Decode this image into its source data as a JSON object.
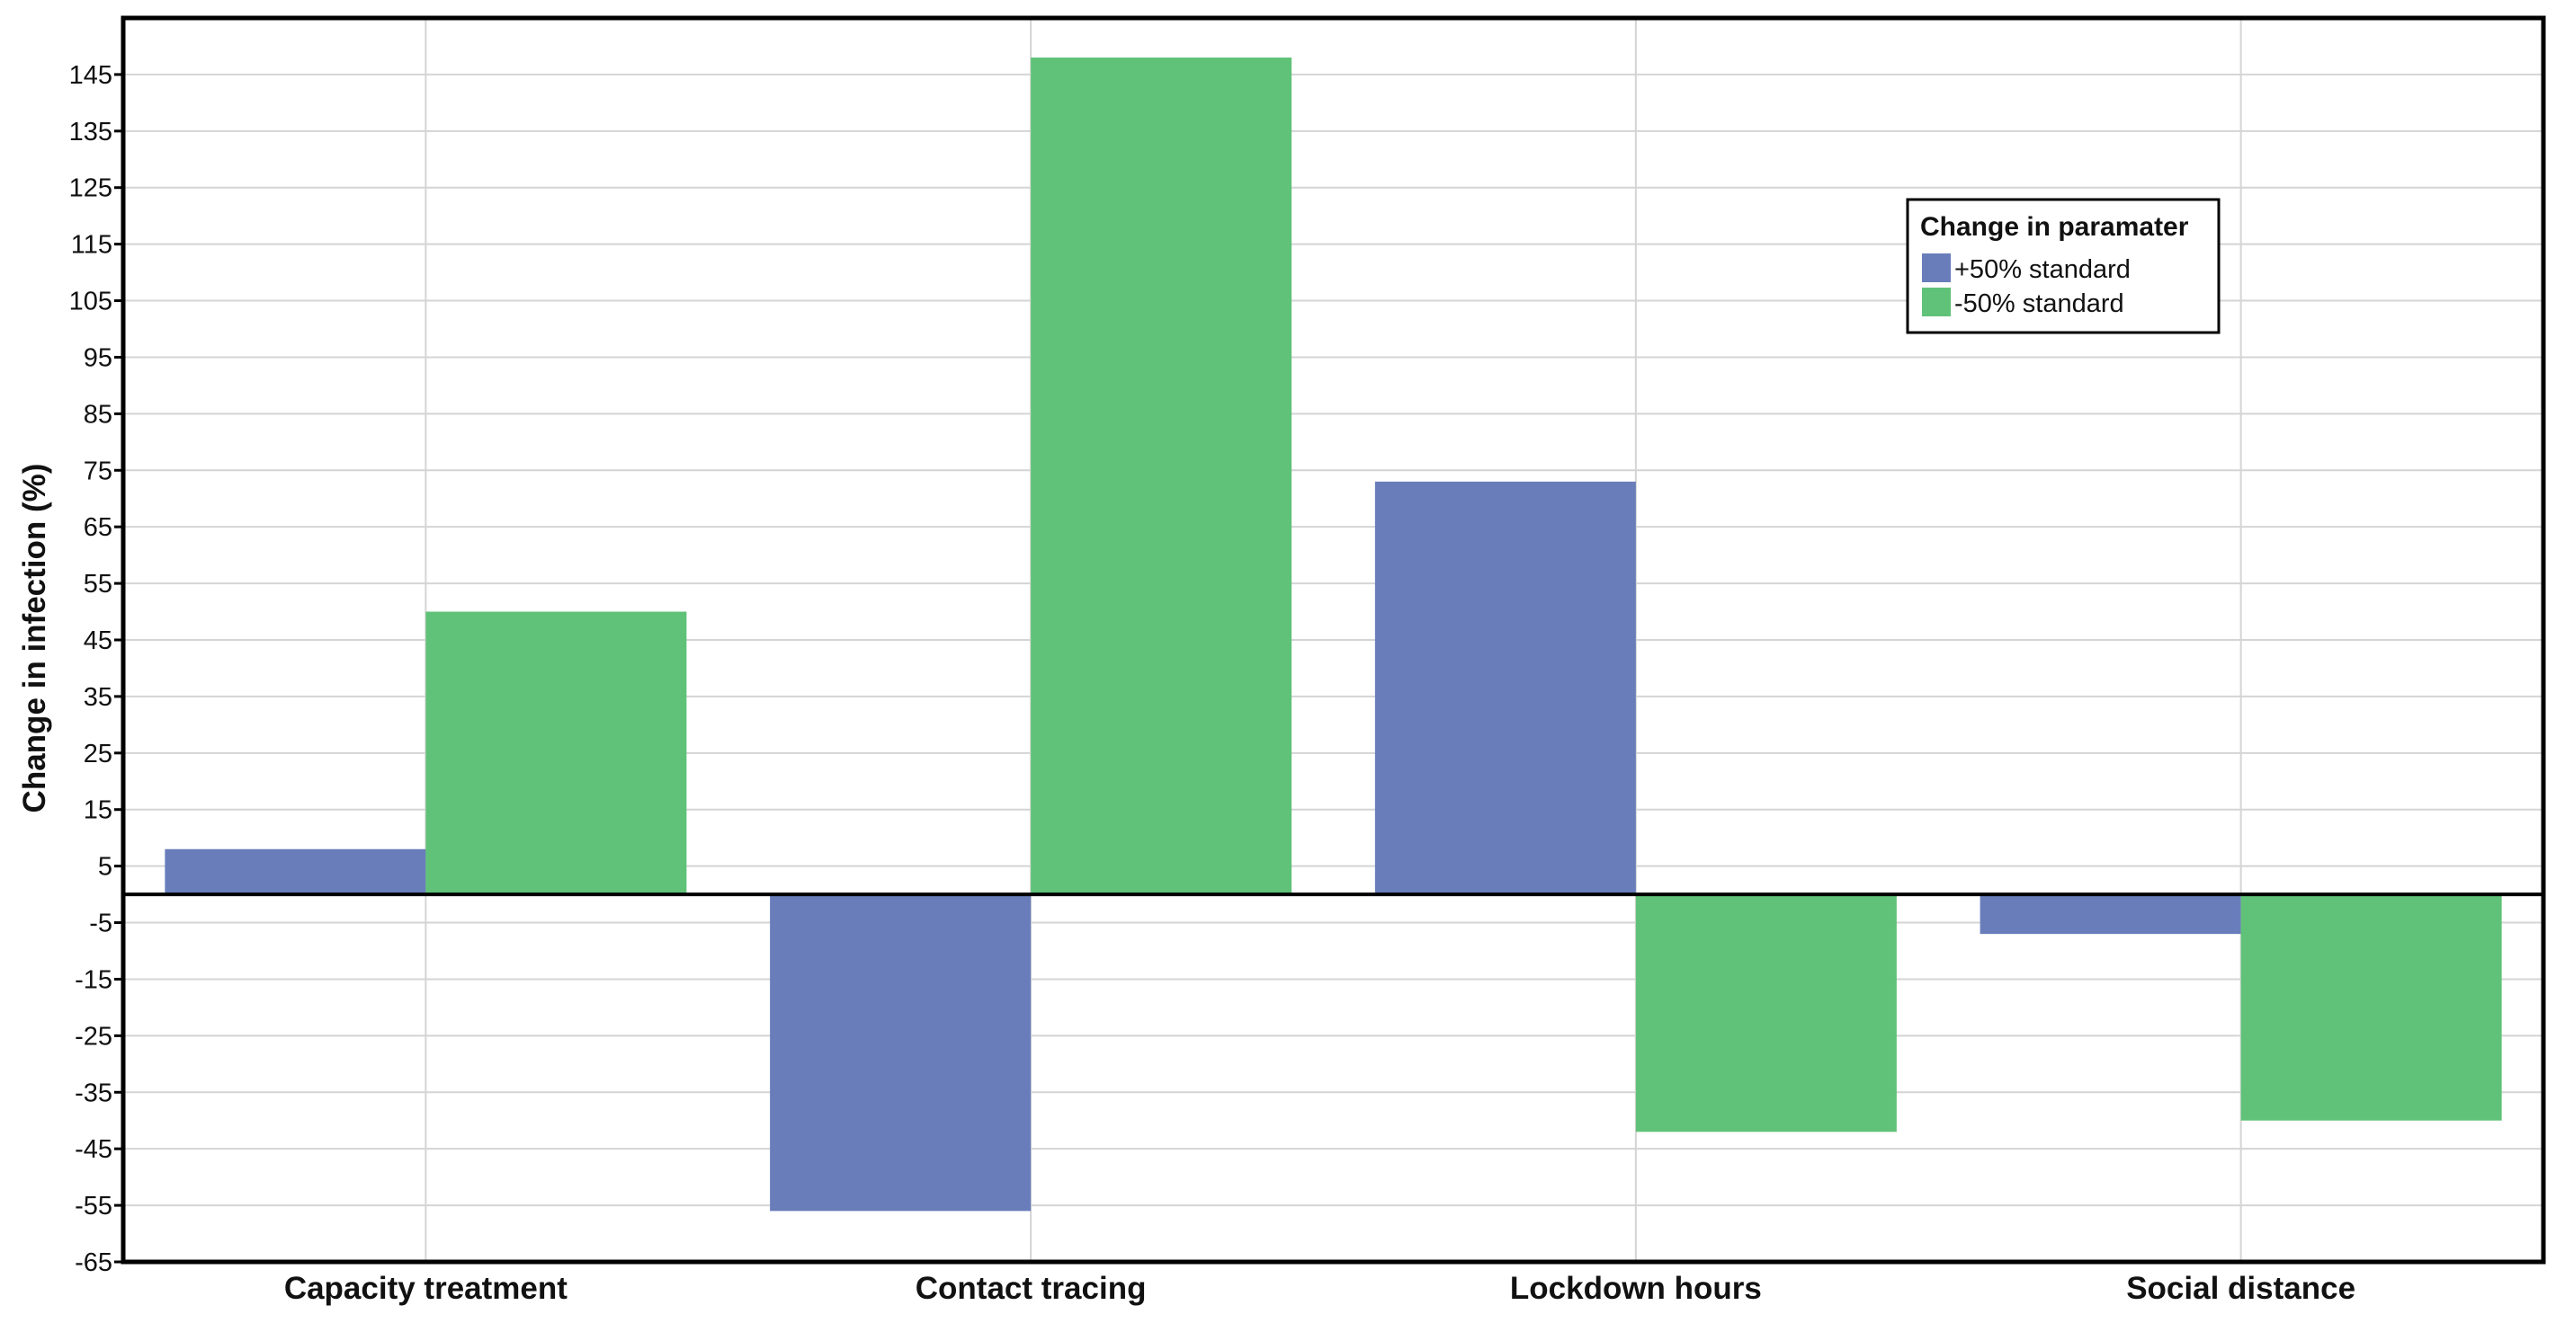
{
  "chart_data": {
    "type": "bar",
    "title": "",
    "xlabel": "",
    "ylabel": "Change in infection (%)",
    "categories": [
      "Capacity treatment",
      "Contact tracing",
      "Lockdown hours",
      "Social distance"
    ],
    "series": [
      {
        "name": "+50% standard",
        "color": "#687dba",
        "values": [
          8,
          -56,
          73,
          -7
        ]
      },
      {
        "name": "-50% standard",
        "color": "#60c278",
        "values": [
          50,
          148,
          -42,
          -40
        ]
      }
    ],
    "ylim": [
      -65,
      155
    ],
    "yticks": [
      145,
      135,
      125,
      115,
      105,
      95,
      85,
      75,
      65,
      55,
      45,
      35,
      25,
      15,
      5,
      -5,
      -15,
      -25,
      -35,
      -45,
      -55,
      -65
    ],
    "grid": true,
    "legend": {
      "title": "Change in paramater",
      "placement": "top-right"
    }
  }
}
